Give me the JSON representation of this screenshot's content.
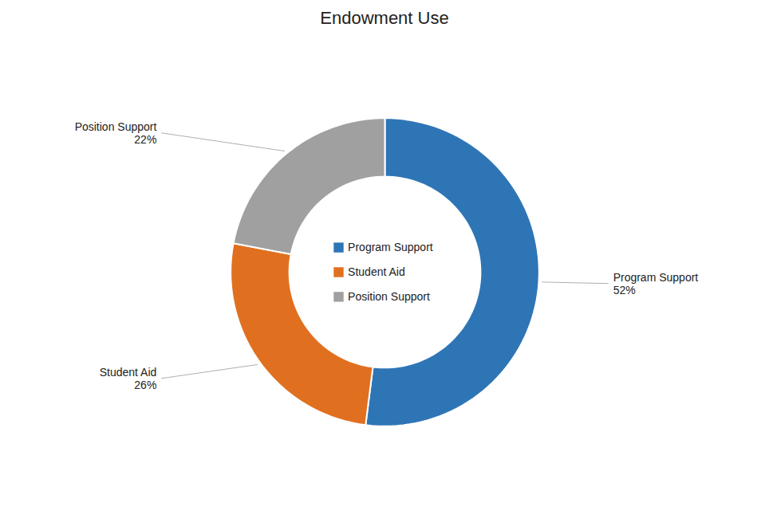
{
  "chart_data": {
    "type": "pie",
    "title": "Endowment Use",
    "categories": [
      "Program Support",
      "Student Aid",
      "Position Support"
    ],
    "values": [
      52,
      26,
      22
    ],
    "colors": [
      "#2E75B6",
      "#E07020",
      "#A0A0A0"
    ],
    "data_labels": true,
    "value_labels": [
      "52%",
      "26%",
      "22%"
    ],
    "legend": "center"
  }
}
